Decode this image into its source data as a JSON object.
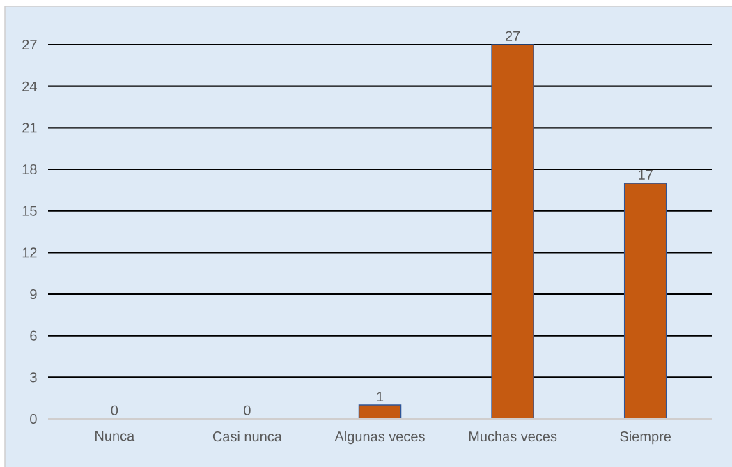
{
  "chart_data": {
    "type": "bar",
    "categories": [
      "Nunca",
      "Casi nunca",
      "Algunas veces",
      "Muchas veces",
      "Siempre"
    ],
    "values": [
      0,
      0,
      1,
      27,
      17
    ],
    "color": "#c55a11",
    "ylim": [
      0,
      27
    ],
    "yticks": [
      0,
      3,
      6,
      9,
      12,
      15,
      18,
      21,
      24,
      27
    ],
    "grid": "y",
    "data_labels": true
  }
}
